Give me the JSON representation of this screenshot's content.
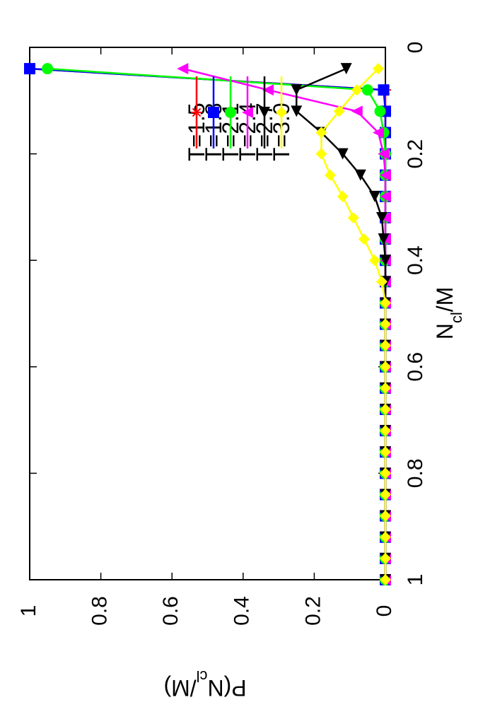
{
  "chart_data": {
    "type": "line",
    "xlabel": "N_cl/M",
    "ylabel": "P(N_cl/M)",
    "xlim": [
      0,
      1
    ],
    "ylim": [
      0,
      1
    ],
    "x_ticks": [
      "0",
      "0.2",
      "0.4",
      "0.6",
      "0.8",
      "1"
    ],
    "y_ticks": [
      "0",
      "0.2",
      "0.4",
      "0.6",
      "0.8",
      "1"
    ],
    "grid": false,
    "legend_position": "top-right",
    "orientation": "rotated-90",
    "x": [
      0.04,
      0.08,
      0.12,
      0.16,
      0.2,
      0.24,
      0.28,
      0.32,
      0.36,
      0.4,
      0.44,
      0.48,
      0.52,
      0.56,
      0.6,
      0.64,
      0.68,
      0.72,
      0.76,
      0.8,
      0.84,
      0.88,
      0.92,
      0.96,
      1.0
    ],
    "series": [
      {
        "name": "T=1.5",
        "color": "#ff0000",
        "marker": "star",
        "values": [
          1.0,
          0,
          0,
          0,
          0,
          0,
          0,
          0,
          0,
          0,
          0,
          0,
          0,
          0,
          0,
          0,
          0,
          0,
          0,
          0,
          0,
          0,
          0,
          0,
          0
        ]
      },
      {
        "name": "T=1.8",
        "color": "#0000ff",
        "marker": "square",
        "values": [
          1.0,
          0.005,
          0,
          0,
          0,
          0,
          0,
          0,
          0,
          0,
          0,
          0,
          0,
          0,
          0,
          0,
          0,
          0,
          0,
          0,
          0,
          0,
          0,
          0,
          0
        ]
      },
      {
        "name": "T=2.1",
        "color": "#00ff00",
        "marker": "circle",
        "values": [
          0.95,
          0.05,
          0.015,
          0.005,
          0,
          0,
          0,
          0,
          0,
          0,
          0,
          0,
          0,
          0,
          0,
          0,
          0,
          0,
          0,
          0,
          0,
          0,
          0,
          0,
          0
        ]
      },
      {
        "name": "T=2.4",
        "color": "#ff00ff",
        "marker": "triangle-up",
        "values": [
          0.57,
          0.33,
          0.08,
          0.02,
          0.005,
          0,
          0,
          0,
          0,
          0,
          0,
          0,
          0,
          0,
          0,
          0,
          0,
          0,
          0,
          0,
          0,
          0,
          0,
          0,
          0
        ]
      },
      {
        "name": "T=2.7",
        "color": "#000000",
        "marker": "triangle-right",
        "values": [
          0.11,
          0.25,
          0.25,
          0.18,
          0.12,
          0.07,
          0.03,
          0.01,
          0.005,
          0,
          0,
          0,
          0,
          0,
          0,
          0,
          0,
          0,
          0,
          0,
          0,
          0,
          0,
          0,
          0
        ]
      },
      {
        "name": "T=3.0",
        "color": "#ffff00",
        "marker": "diamond",
        "values": [
          0.02,
          0.08,
          0.13,
          0.18,
          0.18,
          0.155,
          0.12,
          0.09,
          0.06,
          0.03,
          0.01,
          0,
          0,
          0,
          0,
          0,
          0,
          0,
          0,
          0,
          0,
          0,
          0,
          0,
          0
        ]
      }
    ]
  }
}
